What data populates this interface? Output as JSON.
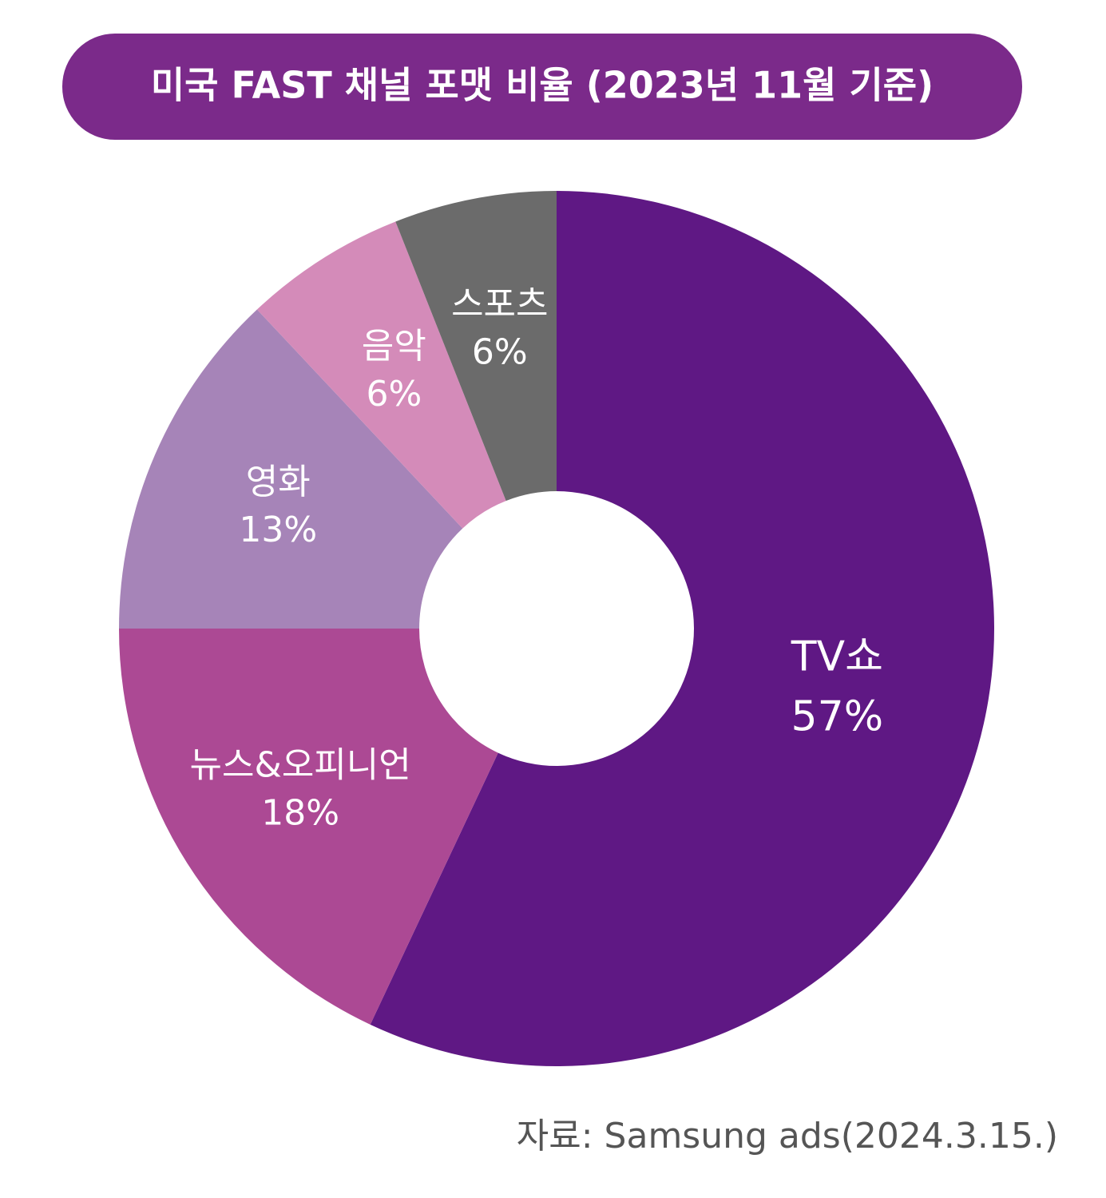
{
  "chart_data": {
    "type": "donut",
    "title": "미국 FAST 채널 포맷 비율 (2023년 11월 기준)",
    "categories": [
      "TV쇼",
      "뉴스&오피니언",
      "영화",
      "음악",
      "스포츠"
    ],
    "values": [
      57,
      18,
      13,
      6,
      6
    ],
    "value_labels": [
      "57%",
      "18%",
      "13%",
      "6%",
      "6%"
    ],
    "colors": [
      "#5f1884",
      "#ac4994",
      "#a684b8",
      "#d48bb9",
      "#6b6b6b"
    ],
    "source": "자료: Samsung ads(2024.3.15.)"
  }
}
